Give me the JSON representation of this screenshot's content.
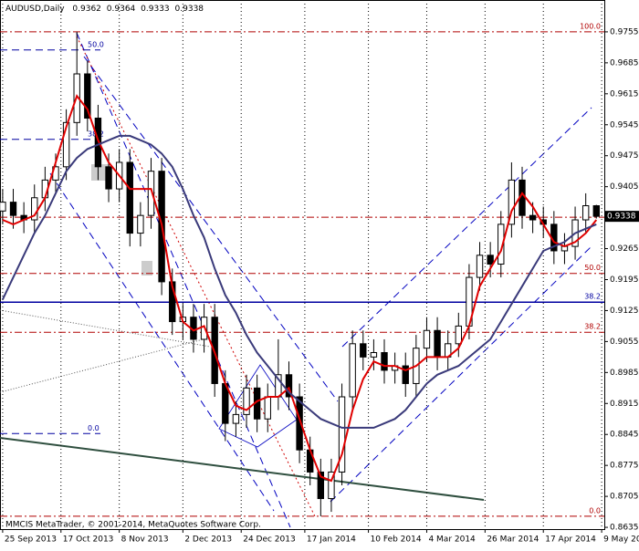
{
  "chart_data": {
    "type": "candlestick",
    "symbol": "AUDUSD,Daily",
    "footer": "MMCIS MetaTrader, © 2001-2014, MetaQuotes Software Corp.",
    "xlim": [
      "2013-09-24",
      "2014-05-10"
    ],
    "xticks": [
      {
        "value": "2013-09-25",
        "label": "25 Sep 2013"
      },
      {
        "value": "2013-10-17",
        "label": "17 Oct 2013"
      },
      {
        "value": "2013-11-08",
        "label": "8 Nov 2013"
      },
      {
        "value": "2013-12-02",
        "label": "2 Dec 2013"
      },
      {
        "value": "2013-12-24",
        "label": "24 Dec 2013"
      },
      {
        "value": "2014-01-17",
        "label": "17 Jan 2014"
      },
      {
        "value": "2014-02-10",
        "label": "10 Feb 2014"
      },
      {
        "value": "2014-03-04",
        "label": "4 Mar 2014"
      },
      {
        "value": "2014-03-26",
        "label": "26 Mar 2014"
      },
      {
        "value": "2014-04-17",
        "label": "17 Apr 2014"
      },
      {
        "value": "2014-05-09",
        "label": "9 May 2014"
      }
    ],
    "ylim": [
      0.8631,
      0.9827
    ],
    "yticks": [
      0.9755,
      0.9685,
      0.9615,
      0.9545,
      0.9475,
      0.9405,
      0.9265,
      0.9195,
      0.9125,
      0.9055,
      0.8985,
      0.8915,
      0.8845,
      0.8775,
      0.8705,
      0.8635
    ],
    "start": "2013-09-25",
    "step_days": 4,
    "open": [
      0.935,
      0.937,
      0.934,
      0.933,
      0.938,
      0.942,
      0.945,
      0.955,
      0.966,
      0.956,
      0.945,
      0.94,
      0.946,
      0.93,
      0.934,
      0.944,
      0.919,
      0.91,
      0.911,
      0.906,
      0.911,
      0.896,
      0.887,
      0.889,
      0.895,
      0.888,
      0.893,
      0.898,
      0.893,
      0.881,
      0.876,
      0.87,
      0.876,
      0.893,
      0.905,
      0.902,
      0.903,
      0.899,
      0.9,
      0.896,
      0.904,
      0.908,
      0.902,
      0.905,
      0.909,
      0.92,
      0.925,
      0.923,
      0.932,
      0.942,
      0.934,
      0.933,
      0.932,
      0.926,
      0.927,
      0.933,
      0.9362
    ],
    "high": [
      0.94,
      0.94,
      0.937,
      0.941,
      0.945,
      0.948,
      0.958,
      0.9755,
      0.969,
      0.959,
      0.948,
      0.949,
      0.949,
      0.937,
      0.947,
      0.947,
      0.922,
      0.914,
      0.914,
      0.914,
      0.914,
      0.899,
      0.892,
      0.898,
      0.898,
      0.896,
      0.906,
      0.901,
      0.896,
      0.884,
      0.879,
      0.879,
      0.896,
      0.908,
      0.908,
      0.906,
      0.906,
      0.903,
      0.903,
      0.907,
      0.911,
      0.911,
      0.908,
      0.912,
      0.923,
      0.928,
      0.928,
      0.935,
      0.946,
      0.945,
      0.937,
      0.936,
      0.935,
      0.93,
      0.936,
      0.939,
      0.9364
    ],
    "low": [
      0.932,
      0.931,
      0.93,
      0.93,
      0.935,
      0.939,
      0.942,
      0.952,
      0.953,
      0.942,
      0.937,
      0.937,
      0.927,
      0.927,
      0.931,
      0.916,
      0.907,
      0.906,
      0.903,
      0.903,
      0.893,
      0.883,
      0.884,
      0.886,
      0.885,
      0.885,
      0.89,
      0.89,
      0.878,
      0.873,
      0.866,
      0.867,
      0.873,
      0.89,
      0.899,
      0.899,
      0.896,
      0.896,
      0.893,
      0.893,
      0.901,
      0.899,
      0.899,
      0.902,
      0.906,
      0.917,
      0.92,
      0.92,
      0.929,
      0.931,
      0.93,
      0.929,
      0.923,
      0.923,
      0.924,
      0.93,
      0.9333
    ],
    "close": [
      0.937,
      0.934,
      0.933,
      0.938,
      0.942,
      0.945,
      0.955,
      0.966,
      0.956,
      0.945,
      0.94,
      0.946,
      0.93,
      0.934,
      0.944,
      0.919,
      0.91,
      0.911,
      0.906,
      0.911,
      0.896,
      0.887,
      0.889,
      0.895,
      0.888,
      0.893,
      0.898,
      0.893,
      0.881,
      0.876,
      0.87,
      0.876,
      0.893,
      0.905,
      0.902,
      0.903,
      0.899,
      0.9,
      0.896,
      0.904,
      0.908,
      0.902,
      0.905,
      0.909,
      0.92,
      0.925,
      0.923,
      0.932,
      0.942,
      0.934,
      0.933,
      0.932,
      0.926,
      0.927,
      0.933,
      0.9362,
      0.9338
    ],
    "moving_averages": [
      {
        "color": "#e00000",
        "values": [
          0.933,
          0.932,
          0.933,
          0.934,
          0.938,
          0.946,
          0.954,
          0.961,
          0.958,
          0.951,
          0.946,
          0.943,
          0.94,
          0.94,
          0.94,
          0.932,
          0.918,
          0.91,
          0.908,
          0.909,
          0.903,
          0.896,
          0.891,
          0.89,
          0.892,
          0.893,
          0.893,
          0.895,
          0.888,
          0.881,
          0.875,
          0.874,
          0.88,
          0.89,
          0.897,
          0.901,
          0.9,
          0.9,
          0.899,
          0.9,
          0.902,
          0.902,
          0.902,
          0.904,
          0.909,
          0.918,
          0.922,
          0.926,
          0.935,
          0.939,
          0.936,
          0.932,
          0.928,
          0.927,
          0.928,
          0.93,
          0.933
        ]
      },
      {
        "color": "#3a3a7a",
        "values": [
          0.915,
          0.92,
          0.925,
          0.93,
          0.934,
          0.939,
          0.944,
          0.947,
          0.949,
          0.95,
          0.951,
          0.952,
          0.952,
          0.951,
          0.95,
          0.948,
          0.945,
          0.94,
          0.934,
          0.929,
          0.922,
          0.916,
          0.912,
          0.907,
          0.903,
          0.9,
          0.897,
          0.894,
          0.892,
          0.89,
          0.888,
          0.887,
          0.886,
          0.886,
          0.886,
          0.886,
          0.887,
          0.888,
          0.89,
          0.893,
          0.896,
          0.898,
          0.899,
          0.9,
          0.902,
          0.904,
          0.906,
          0.91,
          0.914,
          0.918,
          0.922,
          0.926,
          0.927,
          0.928,
          0.93,
          0.931,
          0.932
        ]
      }
    ],
    "levels": [
      {
        "value": 0.9755,
        "label": "100.0",
        "color": "#b00000",
        "style": "dashdot",
        "span": "right"
      },
      {
        "value": 0.9336,
        "color": "#b00000",
        "style": "dashdot",
        "span": "right"
      },
      {
        "value": 0.9209,
        "label": "50.0",
        "color": "#b00000",
        "style": "dashdot",
        "span": "right"
      },
      {
        "value": 0.9076,
        "label": "38.2",
        "color": "#b00000",
        "style": "dashdot",
        "span": "right"
      },
      {
        "value": 0.866,
        "label": "0.0",
        "color": "#b00000",
        "style": "dashdot",
        "span": "right"
      },
      {
        "value": 0.9144,
        "label": "38.2",
        "color": "#0000a0",
        "style": "solid",
        "span": "right"
      },
      {
        "value": 0.9714,
        "label": "50.0",
        "color": "#0000a0",
        "style": "dash",
        "span": "left"
      },
      {
        "value": 0.9512,
        "label": "38.2",
        "color": "#0000a0",
        "style": "dash",
        "span": "left"
      },
      {
        "value": 0.8847,
        "label": "0.0",
        "color": "#0000a0",
        "style": "dash",
        "span": "left"
      }
    ]
  }
}
